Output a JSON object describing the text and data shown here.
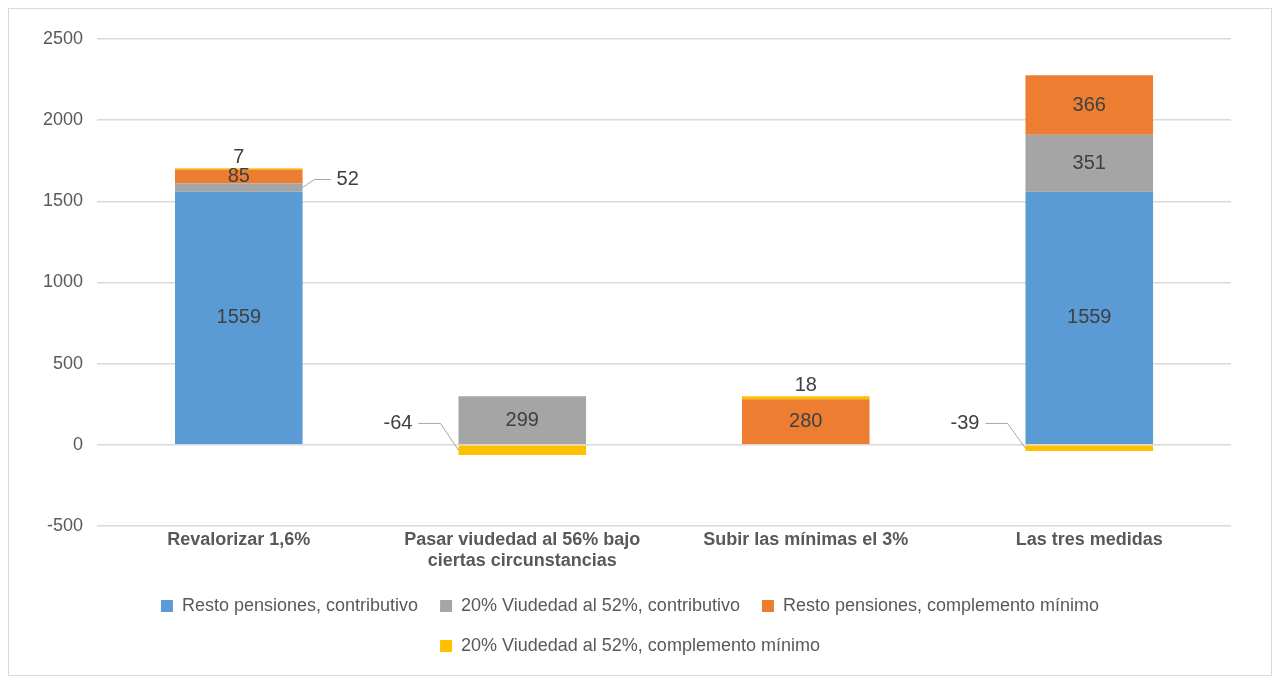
{
  "chart_data": {
    "type": "bar",
    "stacked": true,
    "categories": [
      "Revalorizar 1,6%",
      "Pasar viudedad al 56% bajo ciertas circunstancias",
      "Subir las mínimas el 3%",
      "Las tres medidas"
    ],
    "series": [
      {
        "name": "Resto pensiones, contributivo",
        "color": "#5b9bd5",
        "values": [
          1559,
          null,
          null,
          1559
        ],
        "value_labels": [
          "1559",
          null,
          null,
          "1559"
        ]
      },
      {
        "name": "20% Viudedad al 52%, contributivo",
        "color": "#a5a5a5",
        "values": [
          52,
          299,
          null,
          351
        ],
        "value_labels": [
          "52",
          "299",
          null,
          "351"
        ]
      },
      {
        "name": "Resto pensiones, complemento mínimo",
        "color": "#ed7d31",
        "values": [
          85,
          null,
          280,
          366
        ],
        "value_labels": [
          "85",
          null,
          "280",
          "366"
        ]
      },
      {
        "name": "20% Viudedad al 52%, complemento mínimo",
        "color": "#ffc000",
        "values": [
          7,
          -64,
          18,
          -39
        ],
        "value_labels": [
          "7",
          "-64",
          "18",
          "-39"
        ]
      }
    ],
    "ylim": [
      -500,
      2500
    ],
    "yticks": [
      -500,
      0,
      500,
      1000,
      1500,
      2000,
      2500
    ],
    "grid": "y",
    "legend": "bottom"
  }
}
